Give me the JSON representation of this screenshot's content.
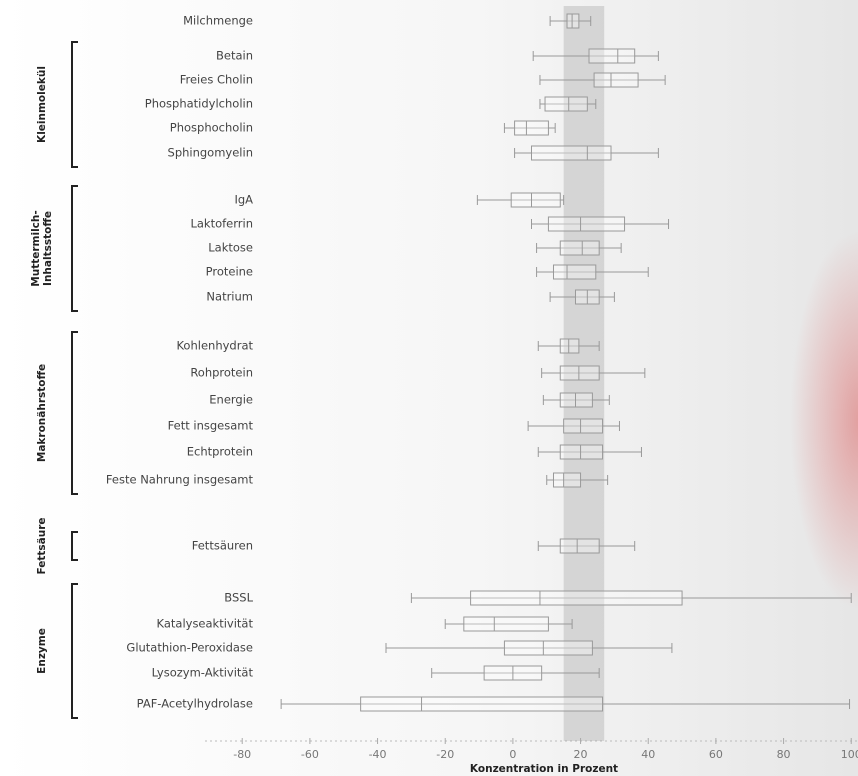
{
  "chart_data": {
    "type": "boxplot",
    "x_label": "Konzentration in Prozent",
    "xlim": [
      -91,
      102
    ],
    "xticks": [
      -80,
      -60,
      -40,
      -20,
      0,
      20,
      40,
      60,
      80,
      100
    ],
    "highlight_band": [
      15,
      27
    ],
    "groups": [
      {
        "label": null,
        "rows": [
          {
            "name": "Milchmenge",
            "min": 11,
            "q1": 16,
            "median": 17.5,
            "q3": 19.5,
            "max": 23
          }
        ]
      },
      {
        "label": [
          "Kleinmolekül"
        ],
        "rows": [
          {
            "name": "Betain",
            "min": 6,
            "q1": 22.5,
            "median": 31,
            "q3": 36,
            "max": 43
          },
          {
            "name": "Freies Cholin",
            "min": 8,
            "q1": 24,
            "median": 29,
            "q3": 37,
            "max": 45
          },
          {
            "name": "Phosphatidylcholin",
            "min": 8,
            "q1": 9.5,
            "median": 16.5,
            "q3": 22,
            "max": 24.5
          },
          {
            "name": "Phosphocholin",
            "min": -2.5,
            "q1": 0.5,
            "median": 4,
            "q3": 10.5,
            "max": 12.5
          },
          {
            "name": "Sphingomyelin",
            "min": 0.5,
            "q1": 5.5,
            "median": 22,
            "q3": 29,
            "max": 43
          }
        ]
      },
      {
        "label": [
          "Muttermilch-",
          "Inhaltsstoffe"
        ],
        "rows": [
          {
            "name": "IgA",
            "min": -10.5,
            "q1": -0.5,
            "median": 5.5,
            "q3": 14,
            "max": 15
          },
          {
            "name": "Laktoferrin",
            "min": 5.5,
            "q1": 10.5,
            "median": 20,
            "q3": 33,
            "max": 46
          },
          {
            "name": "Laktose",
            "min": 7,
            "q1": 14,
            "median": 20.5,
            "q3": 25.5,
            "max": 32
          },
          {
            "name": "Proteine",
            "min": 7,
            "q1": 12,
            "median": 16,
            "q3": 24.5,
            "max": 40
          },
          {
            "name": "Natrium",
            "min": 11,
            "q1": 18.5,
            "median": 22,
            "q3": 25.5,
            "max": 30
          }
        ]
      },
      {
        "label": [
          "Makronährstoffe"
        ],
        "rows": [
          {
            "name": "Kohlenhydrat",
            "min": 7.5,
            "q1": 14,
            "median": 16.5,
            "q3": 19.5,
            "max": 25.5
          },
          {
            "name": "Rohprotein",
            "min": 8.5,
            "q1": 14,
            "median": 19.5,
            "q3": 25.5,
            "max": 39
          },
          {
            "name": "Energie",
            "min": 9,
            "q1": 14,
            "median": 18.5,
            "q3": 23.5,
            "max": 28.5
          },
          {
            "name": "Fett insgesamt",
            "min": 4.5,
            "q1": 15,
            "median": 20,
            "q3": 26.5,
            "max": 31.5
          },
          {
            "name": "Echtprotein",
            "min": 7.5,
            "q1": 14,
            "median": 20,
            "q3": 26.5,
            "max": 38
          },
          {
            "name": "Feste Nahrung insgesamt",
            "min": 10,
            "q1": 12,
            "median": 15,
            "q3": 20,
            "max": 28
          }
        ]
      },
      {
        "label": [
          "Fettsäure"
        ],
        "rows": [
          {
            "name": "Fettsäuren",
            "min": 7.5,
            "q1": 14,
            "median": 19,
            "q3": 25.5,
            "max": 36
          }
        ]
      },
      {
        "label": [
          "Enzyme"
        ],
        "rows": [
          {
            "name": "BSSL",
            "min": -30,
            "q1": -12.5,
            "median": 8,
            "q3": 50,
            "max": 100
          },
          {
            "name": "Katalyseaktivität",
            "min": -20,
            "q1": -14.5,
            "median": -5.5,
            "q3": 10.5,
            "max": 17.5
          },
          {
            "name": "Glutathion-Peroxidase",
            "min": -37.5,
            "q1": -2.5,
            "median": 9,
            "q3": 23.5,
            "max": 47
          },
          {
            "name": "Lysozym-Aktivität",
            "min": -24,
            "q1": -8.5,
            "median": 0,
            "q3": 8.5,
            "max": 25.5
          },
          {
            "name": "PAF-Acetylhydrolase",
            "min": -68.5,
            "q1": -45,
            "median": -27,
            "q3": 26.5,
            "max": 99.5
          }
        ]
      }
    ]
  }
}
